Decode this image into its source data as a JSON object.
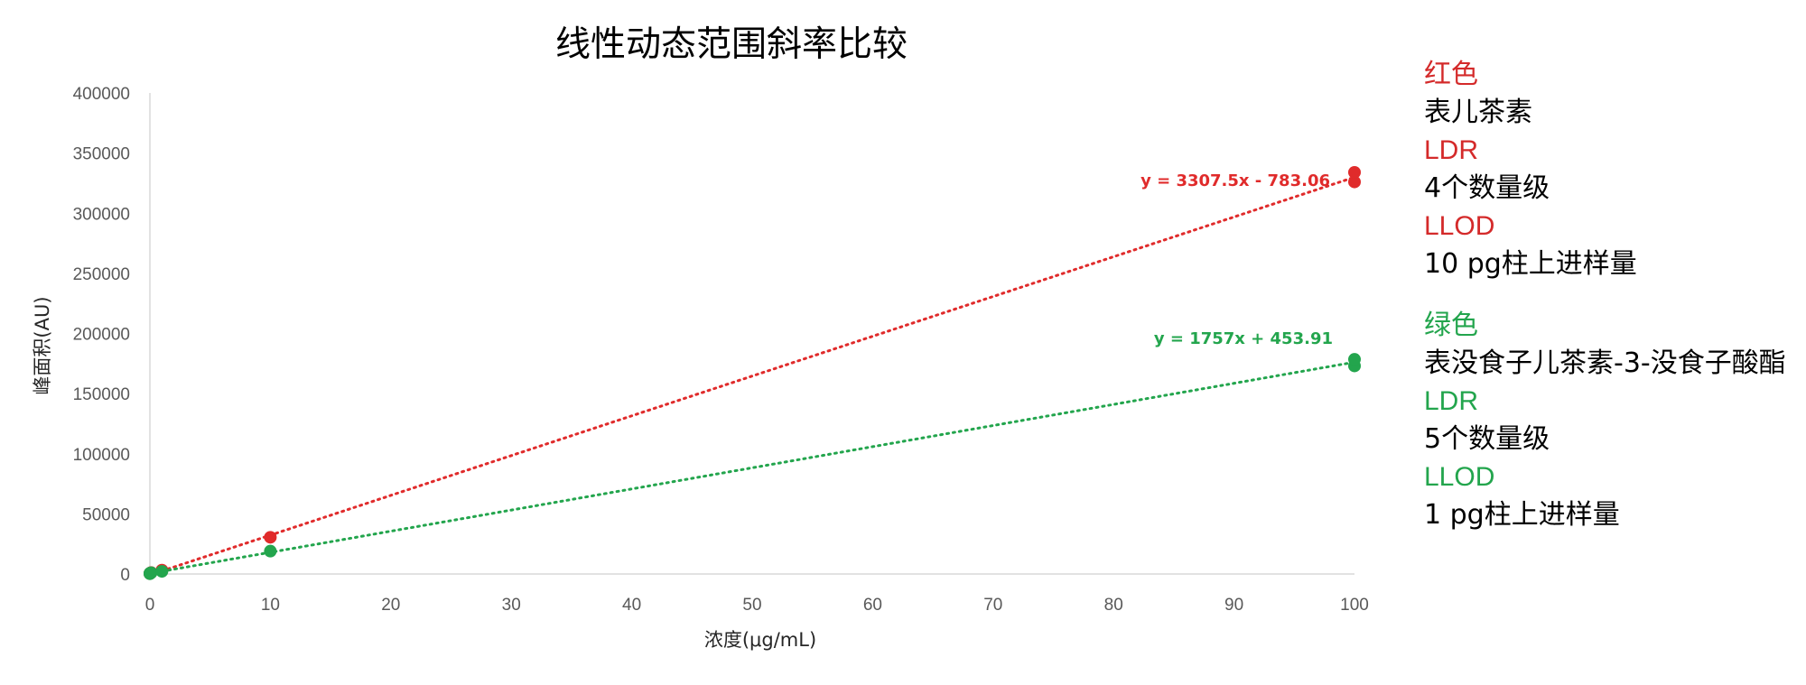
{
  "chart_data": {
    "type": "scatter",
    "title": "线性动态范围斜率比较",
    "xlabel": "浓度(μg/mL)",
    "ylabel": "峰面积(AU)",
    "xlim": [
      0,
      100
    ],
    "ylim": [
      0,
      400000
    ],
    "xticks": [
      "0",
      "10",
      "20",
      "30",
      "40",
      "50",
      "60",
      "70",
      "80",
      "90",
      "100"
    ],
    "yticks": [
      "0",
      "50000",
      "100000",
      "150000",
      "200000",
      "250000",
      "300000",
      "350000",
      "400000"
    ],
    "grid": false,
    "series": [
      {
        "color": "#e02b2b",
        "trendline": {
          "slope": 3307.5,
          "intercept": -783.06,
          "style": "dotted"
        },
        "equation": "y = 3307.5x - 783.06",
        "points": [
          {
            "x": 0.001,
            "y": 300
          },
          {
            "x": 0.01,
            "y": 600
          },
          {
            "x": 0.1,
            "y": 1200
          },
          {
            "x": 1,
            "y": 3200
          },
          {
            "x": 10,
            "y": 30500
          },
          {
            "x": 100,
            "y": 326000
          },
          {
            "x": 100,
            "y": 334000
          }
        ]
      },
      {
        "color": "#23a54d",
        "trendline": {
          "slope": 1757,
          "intercept": 453.91,
          "style": "dotted"
        },
        "equation": "y = 1757x + 453.91",
        "points": [
          {
            "x": 0.0001,
            "y": 200
          },
          {
            "x": 0.001,
            "y": 400
          },
          {
            "x": 0.01,
            "y": 700
          },
          {
            "x": 0.1,
            "y": 1000
          },
          {
            "x": 1,
            "y": 2200
          },
          {
            "x": 10,
            "y": 19000
          },
          {
            "x": 100,
            "y": 173000
          },
          {
            "x": 100,
            "y": 178500
          }
        ]
      }
    ]
  },
  "legend": {
    "red": {
      "color": "#d42a2a",
      "color_word": "红色",
      "compound": "表儿茶素",
      "ldr_label": "LDR",
      "ldr_value": "4个数量级",
      "llod_label": "LLOD",
      "llod_value": "10 pg柱上进样量"
    },
    "green": {
      "color": "#23a54d",
      "color_word": "绿色",
      "compound": "表没食子儿茶素-3-没食子酸酯",
      "ldr_label": "LDR",
      "ldr_value": "5个数量级",
      "llod_label": "LLOD",
      "llod_value": "1 pg柱上进样量"
    }
  }
}
